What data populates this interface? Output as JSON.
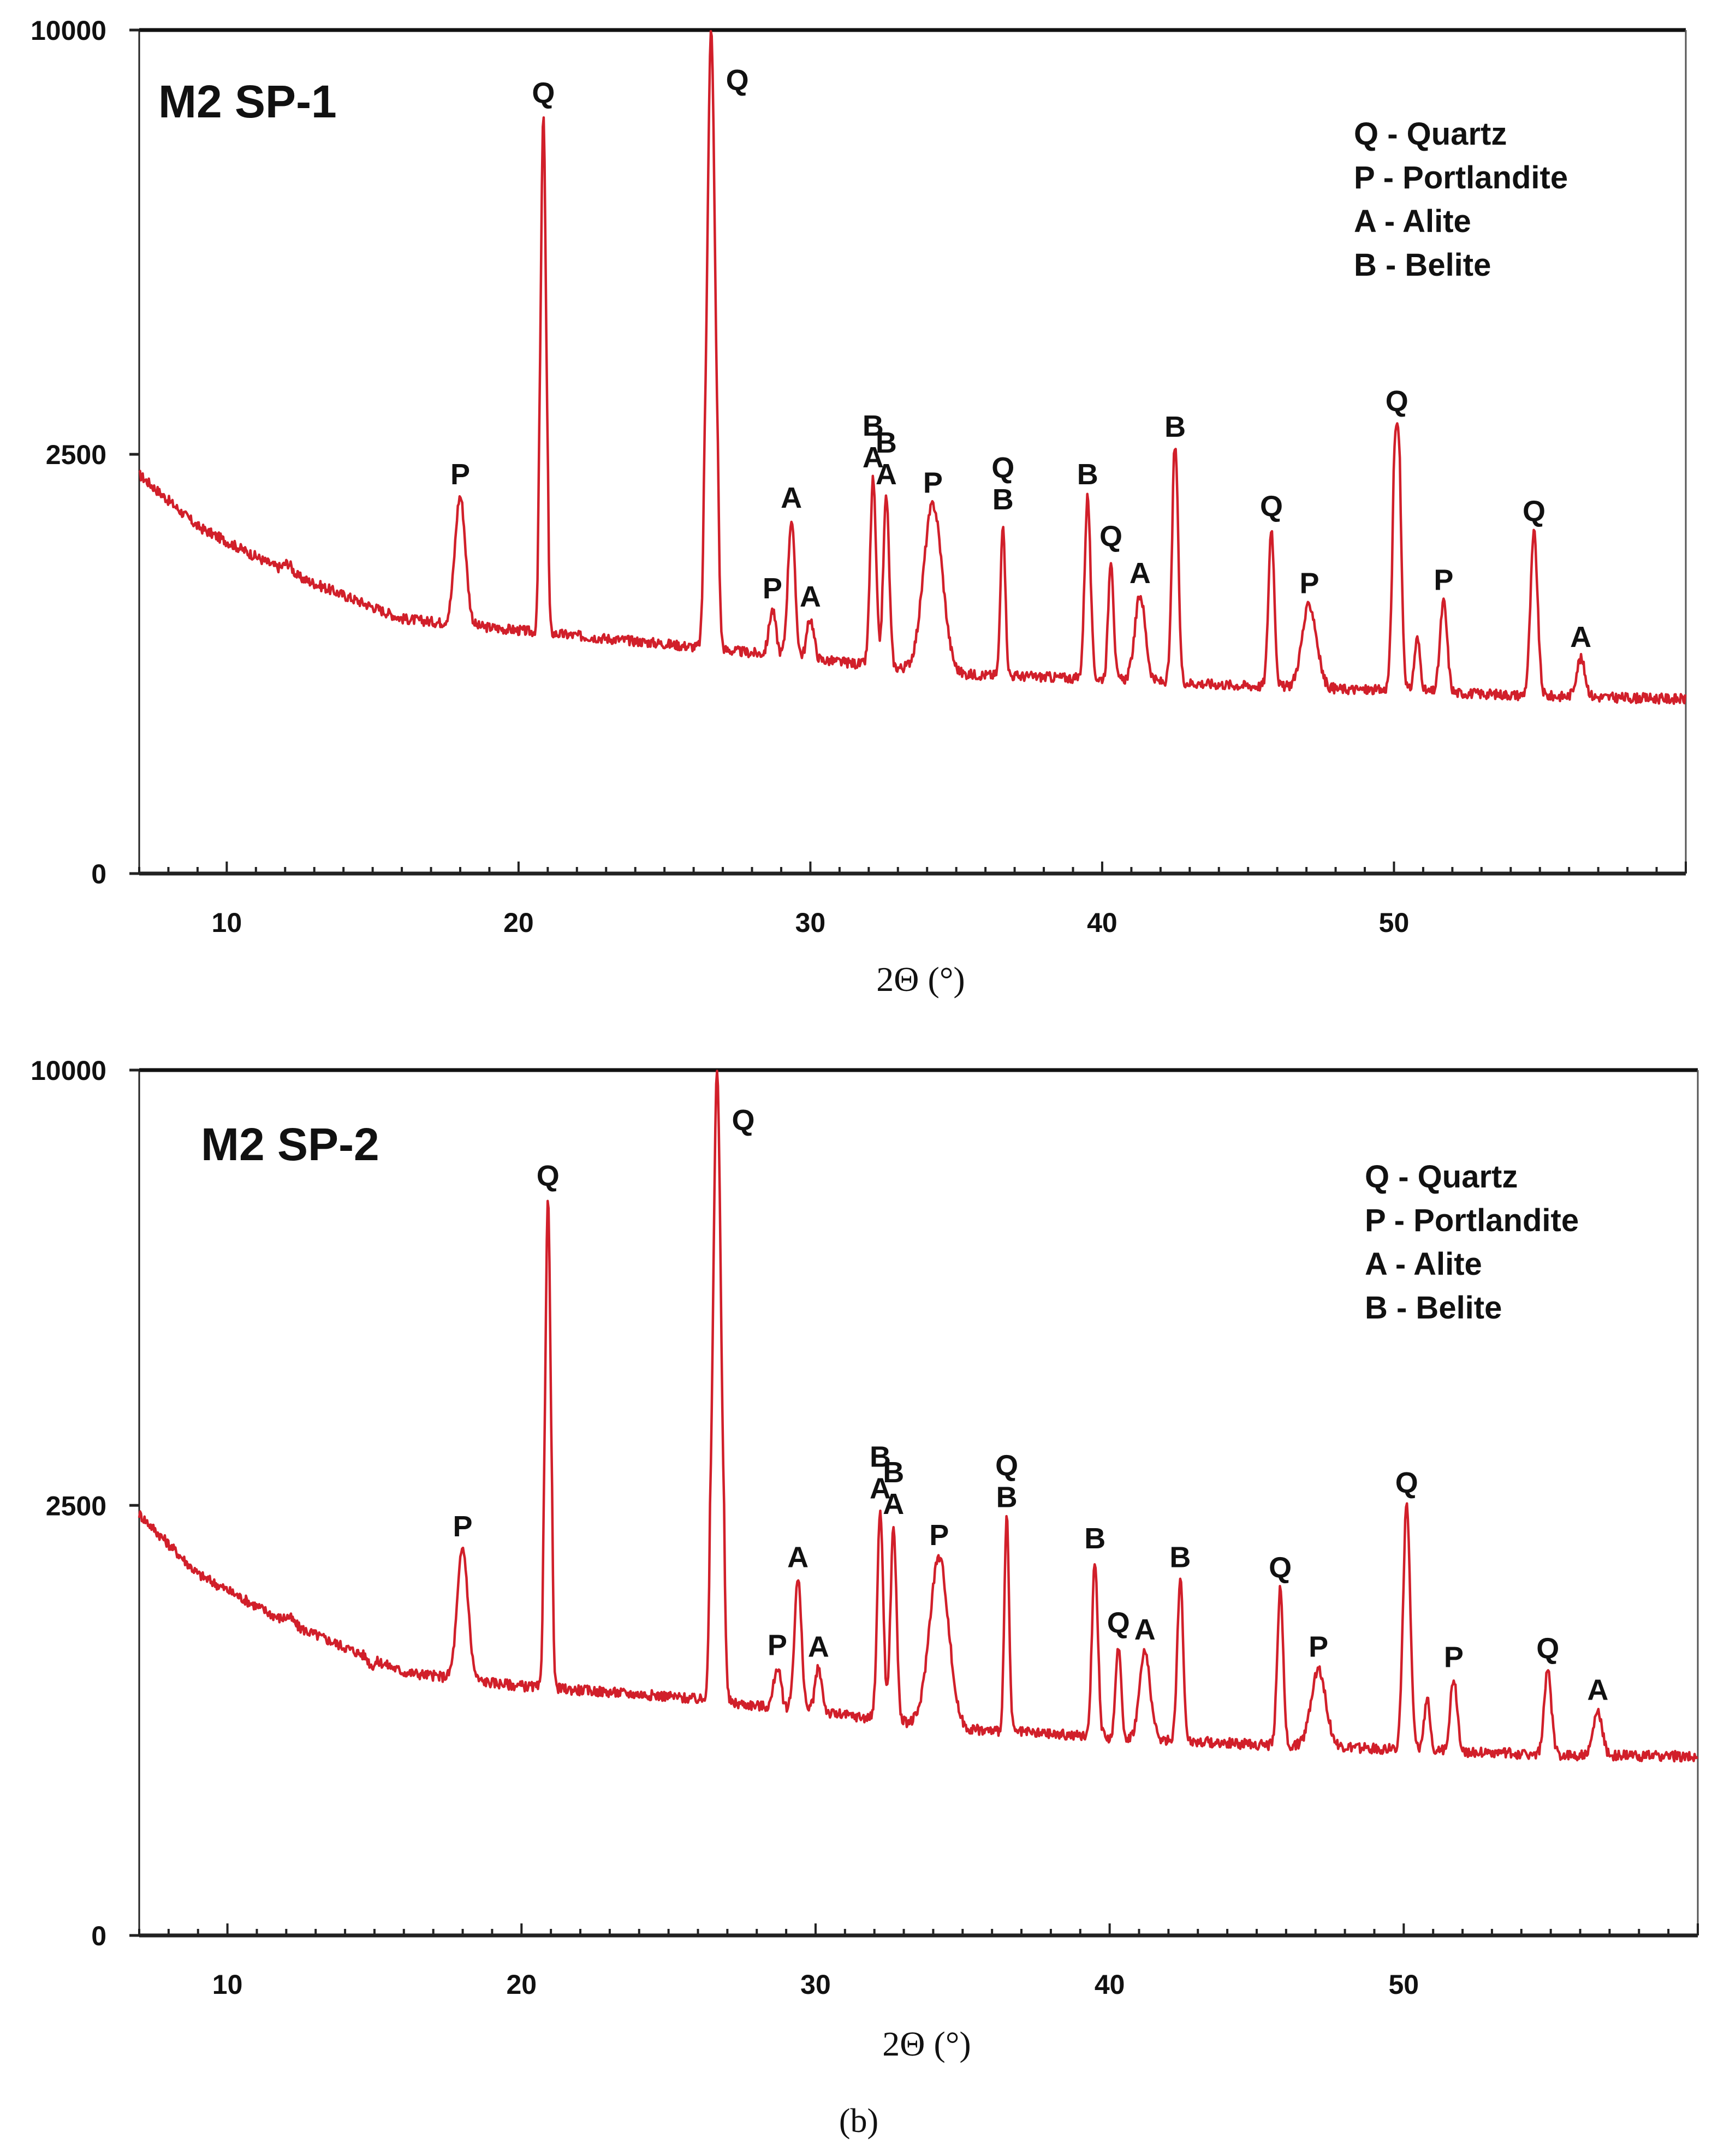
{
  "caption": "(b)",
  "chart_data": [
    {
      "type": "line",
      "title": "M2 SP-1",
      "xlabel": "2Θ (°)",
      "ylabel": "",
      "xlim": [
        7,
        60
      ],
      "ylim": [
        0,
        10000
      ],
      "xticks": [
        10,
        20,
        30,
        40,
        50
      ],
      "yticks": [
        {
          "value": 0,
          "label": "0"
        },
        {
          "value": 2500,
          "label": "2500"
        },
        {
          "value": 10000,
          "label": "10000"
        }
      ],
      "legend": [
        "Q - Quartz",
        "P - Portlandite",
        "A - Alite",
        "B - Belite"
      ],
      "legend_position": "top-right",
      "baseline": [
        [
          7,
          2380
        ],
        [
          9,
          2070
        ],
        [
          12,
          1800
        ],
        [
          16,
          1520
        ],
        [
          20,
          1450
        ],
        [
          25,
          1370
        ],
        [
          30,
          1280
        ],
        [
          35,
          1190
        ],
        [
          40,
          1160
        ],
        [
          45,
          1120
        ],
        [
          50,
          1090
        ],
        [
          55,
          1060
        ],
        [
          60,
          1040
        ]
      ],
      "peaks": [
        {
          "x": 12.1,
          "y": 1850,
          "w": 0.15,
          "label": ""
        },
        {
          "x": 18.0,
          "y": 2250,
          "w": 0.18,
          "label": "P"
        },
        {
          "x": 20.85,
          "y": 8500,
          "w": 0.08,
          "label": "Q"
        },
        {
          "x": 26.6,
          "y": 10000,
          "w": 0.12,
          "label": "Q"
        },
        {
          "x": 28.7,
          "y": 1570,
          "w": 0.12,
          "label": "P"
        },
        {
          "x": 29.35,
          "y": 2110,
          "w": 0.12,
          "label": "A"
        },
        {
          "x": 30.0,
          "y": 1520,
          "w": 0.12,
          "label": "A"
        },
        {
          "x": 32.15,
          "y": 2350,
          "w": 0.1,
          "label": "B\nA"
        },
        {
          "x": 32.6,
          "y": 2250,
          "w": 0.1,
          "label": "B\nA"
        },
        {
          "x": 34.2,
          "y": 2200,
          "w": 0.32,
          "label": "P"
        },
        {
          "x": 36.6,
          "y": 2100,
          "w": 0.08,
          "label": "Q\nB"
        },
        {
          "x": 39.5,
          "y": 2250,
          "w": 0.1,
          "label": "B"
        },
        {
          "x": 40.3,
          "y": 1880,
          "w": 0.09,
          "label": "Q"
        },
        {
          "x": 41.3,
          "y": 1660,
          "w": 0.18,
          "label": "A"
        },
        {
          "x": 42.5,
          "y": 2600,
          "w": 0.1,
          "label": "B"
        },
        {
          "x": 45.8,
          "y": 2060,
          "w": 0.1,
          "label": "Q"
        },
        {
          "x": 47.1,
          "y": 1600,
          "w": 0.25,
          "label": "P"
        },
        {
          "x": 50.1,
          "y": 3050,
          "w": 0.12,
          "label": "Q"
        },
        {
          "x": 50.8,
          "y": 1400,
          "w": 0.1,
          "label": ""
        },
        {
          "x": 51.7,
          "y": 1620,
          "w": 0.12,
          "label": "P"
        },
        {
          "x": 54.8,
          "y": 2030,
          "w": 0.12,
          "label": "Q"
        },
        {
          "x": 56.4,
          "y": 1280,
          "w": 0.15,
          "label": "A"
        }
      ]
    },
    {
      "type": "line",
      "title": "M2 SP-2",
      "xlabel": "2Θ (°)",
      "ylabel": "",
      "xlim": [
        7,
        60
      ],
      "ylim": [
        0,
        10000
      ],
      "xticks": [
        10,
        20,
        30,
        40,
        50
      ],
      "yticks": [
        {
          "value": 0,
          "label": "0"
        },
        {
          "value": 2500,
          "label": "2500"
        },
        {
          "value": 10000,
          "label": "10000"
        }
      ],
      "legend": [
        "Q - Quartz",
        "P - Portlandite",
        "A - Alite",
        "B - Belite"
      ],
      "legend_position": "top-right",
      "baseline": [
        [
          7,
          2450
        ],
        [
          9,
          2100
        ],
        [
          12,
          1820
        ],
        [
          16,
          1530
        ],
        [
          20,
          1450
        ],
        [
          25,
          1390
        ],
        [
          30,
          1300
        ],
        [
          35,
          1200
        ],
        [
          40,
          1150
        ],
        [
          45,
          1110
        ],
        [
          50,
          1080
        ],
        [
          55,
          1050
        ],
        [
          60,
          1040
        ]
      ],
      "peaks": [
        {
          "x": 12.1,
          "y": 1850,
          "w": 0.15,
          "label": ""
        },
        {
          "x": 14.9,
          "y": 1570,
          "w": 0.1,
          "label": ""
        },
        {
          "x": 18.0,
          "y": 2250,
          "w": 0.18,
          "label": "P"
        },
        {
          "x": 20.9,
          "y": 7800,
          "w": 0.08,
          "label": "Q"
        },
        {
          "x": 26.65,
          "y": 10000,
          "w": 0.12,
          "label": "Q"
        },
        {
          "x": 28.7,
          "y": 1560,
          "w": 0.12,
          "label": "P"
        },
        {
          "x": 29.4,
          "y": 2070,
          "w": 0.12,
          "label": "A"
        },
        {
          "x": 30.1,
          "y": 1550,
          "w": 0.12,
          "label": "A"
        },
        {
          "x": 32.2,
          "y": 2470,
          "w": 0.1,
          "label": "B\nA"
        },
        {
          "x": 32.65,
          "y": 2380,
          "w": 0.1,
          "label": "B\nA"
        },
        {
          "x": 34.2,
          "y": 2200,
          "w": 0.32,
          "label": "P"
        },
        {
          "x": 36.5,
          "y": 2420,
          "w": 0.08,
          "label": "Q\nB"
        },
        {
          "x": 39.5,
          "y": 2180,
          "w": 0.1,
          "label": "B"
        },
        {
          "x": 40.3,
          "y": 1690,
          "w": 0.09,
          "label": "Q"
        },
        {
          "x": 41.2,
          "y": 1650,
          "w": 0.18,
          "label": "A"
        },
        {
          "x": 42.4,
          "y": 2070,
          "w": 0.1,
          "label": "B"
        },
        {
          "x": 45.8,
          "y": 2010,
          "w": 0.1,
          "label": "Q"
        },
        {
          "x": 47.1,
          "y": 1550,
          "w": 0.25,
          "label": "P"
        },
        {
          "x": 50.1,
          "y": 2510,
          "w": 0.12,
          "label": "Q"
        },
        {
          "x": 50.8,
          "y": 1380,
          "w": 0.1,
          "label": ""
        },
        {
          "x": 51.7,
          "y": 1490,
          "w": 0.12,
          "label": "P"
        },
        {
          "x": 54.9,
          "y": 1540,
          "w": 0.12,
          "label": "Q"
        },
        {
          "x": 56.6,
          "y": 1300,
          "w": 0.15,
          "label": "A"
        }
      ]
    }
  ]
}
